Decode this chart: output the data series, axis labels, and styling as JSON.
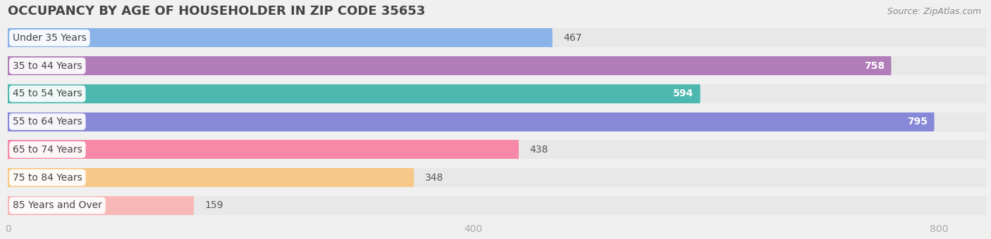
{
  "title": "OCCUPANCY BY AGE OF HOUSEHOLDER IN ZIP CODE 35653",
  "source": "Source: ZipAtlas.com",
  "categories": [
    "Under 35 Years",
    "35 to 44 Years",
    "45 to 54 Years",
    "55 to 64 Years",
    "65 to 74 Years",
    "75 to 84 Years",
    "85 Years and Over"
  ],
  "values": [
    467,
    758,
    594,
    795,
    438,
    348,
    159
  ],
  "bar_colors": [
    "#8ab4e8",
    "#b07db8",
    "#4db8b0",
    "#8888d8",
    "#f888a8",
    "#f8c888",
    "#f8b8b8"
  ],
  "xlim": [
    0,
    840
  ],
  "xticks": [
    0,
    400,
    800
  ],
  "background_color": "#f0f0f0",
  "bar_bg_color": "#e8e8e8",
  "title_fontsize": 13,
  "label_fontsize": 10,
  "value_fontsize": 10
}
